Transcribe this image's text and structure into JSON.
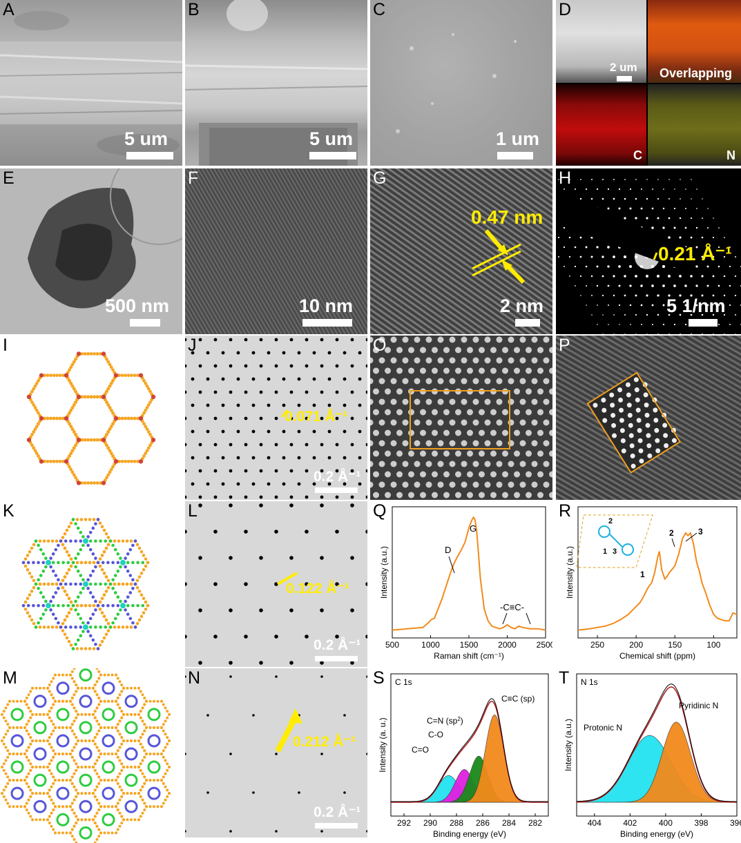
{
  "panel_labels": [
    "A",
    "B",
    "C",
    "D",
    "E",
    "F",
    "G",
    "H",
    "I",
    "J",
    "O",
    "P",
    "K",
    "L",
    "Q",
    "R",
    "M",
    "N",
    "S",
    "T"
  ],
  "scale_bars": {
    "A": "5 um",
    "B": "5 um",
    "C": "1 um",
    "D": "2 um",
    "E": "500 nm",
    "F": "10 nm",
    "G": "2 nm",
    "H": "5 1/nm",
    "J": "0.2 Å⁻¹",
    "L": "0.2 Å⁻¹",
    "N": "0.2 Å⁻¹"
  },
  "D_labels": {
    "overlap": "Overlapping",
    "c": "C",
    "n": "N"
  },
  "annotations": {
    "G": "0.47 nm",
    "H": "0.21 Å⁻¹",
    "J": "0.071 Å⁻¹",
    "L": "0.122 Å⁻¹",
    "N": "0.212 Å⁻¹"
  },
  "colors": {
    "orange_line": "#f28a1c",
    "yellow_label": "#ffec00",
    "node_orange": "#f5a623",
    "node_green": "#2ecc40",
    "node_blue": "#5656d8",
    "node_cyan": "#20d0c0",
    "node_red": "#d0453a",
    "fit_cyan": "#22e3f0",
    "fit_magenta": "#e020e0",
    "fit_green": "#1a8a1a",
    "fit_orange": "#f28a1c",
    "envelope": "#b0181c"
  },
  "chart_data": [
    {
      "panel": "Q",
      "type": "line",
      "xlabel": "Raman shift (cm⁻¹)",
      "ylabel": "Intensity (a.u.)",
      "xlim": [
        500,
        2500
      ],
      "xticks": [
        500,
        1000,
        1500,
        2000,
        2500
      ],
      "annotations": [
        "D",
        "G",
        "-C≡C-"
      ],
      "series": [
        {
          "x": [
            500,
            700,
            900,
            980,
            1010,
            1050,
            1150,
            1250,
            1300,
            1350,
            1400,
            1450,
            1500,
            1540,
            1560,
            1580,
            1600,
            1620,
            1650,
            1700,
            1750,
            1800,
            1900,
            1950,
            2000,
            2050,
            2100,
            2150,
            2200,
            2300,
            2400,
            2500
          ],
          "y": [
            0.06,
            0.07,
            0.08,
            0.12,
            0.14,
            0.15,
            0.3,
            0.48,
            0.56,
            0.62,
            0.67,
            0.73,
            0.84,
            0.9,
            0.92,
            0.9,
            0.82,
            0.68,
            0.45,
            0.22,
            0.13,
            0.09,
            0.07,
            0.08,
            0.1,
            0.08,
            0.07,
            0.09,
            0.08,
            0.07,
            0.07,
            0.06
          ]
        }
      ]
    },
    {
      "panel": "R",
      "type": "line",
      "xlabel": "Chemical shift (ppm)",
      "ylabel": "Intensity (a.u.)",
      "xlim": [
        275,
        70
      ],
      "xticks": [
        250,
        200,
        150,
        100
      ],
      "annotations": [
        "1",
        "2",
        "3",
        "1",
        "2",
        "3"
      ],
      "series": [
        {
          "x": [
            275,
            260,
            250,
            240,
            230,
            220,
            210,
            200,
            195,
            190,
            185,
            180,
            176,
            172,
            170,
            167,
            163,
            160,
            157,
            154,
            150,
            145,
            140,
            136,
            133,
            130,
            126,
            122,
            118,
            115,
            110,
            105,
            100,
            95,
            90,
            85,
            80,
            75,
            70
          ],
          "y": [
            0.06,
            0.07,
            0.08,
            0.09,
            0.11,
            0.14,
            0.18,
            0.24,
            0.27,
            0.32,
            0.38,
            0.42,
            0.5,
            0.62,
            0.66,
            0.52,
            0.45,
            0.47,
            0.5,
            0.52,
            0.55,
            0.64,
            0.76,
            0.8,
            0.78,
            0.8,
            0.72,
            0.58,
            0.5,
            0.42,
            0.34,
            0.25,
            0.18,
            0.15,
            0.14,
            0.13,
            0.13,
            0.19,
            0.18
          ]
        }
      ]
    },
    {
      "panel": "S",
      "type": "area",
      "title": "C 1s",
      "xlabel": "Binding energy (eV)",
      "ylabel": "Intensity (a. u.)",
      "xlim": [
        293,
        281
      ],
      "xticks": [
        292,
        290,
        288,
        286,
        284,
        282
      ],
      "series": [
        {
          "name": "C=O",
          "center": 288.6,
          "height": 0.22,
          "width": 0.8
        },
        {
          "name": "C-O",
          "center": 287.4,
          "height": 0.27,
          "width": 0.7
        },
        {
          "name": "C=N (sp2)",
          "center": 286.3,
          "height": 0.38,
          "width": 0.7
        },
        {
          "name": "C≡C (sp)",
          "center": 285.1,
          "height": 0.72,
          "width": 0.7
        }
      ]
    },
    {
      "panel": "T",
      "type": "area",
      "title": "N 1s",
      "xlabel": "Binding energy (eV)",
      "ylabel": "Intensity (a.u.)",
      "xlim": [
        405,
        396
      ],
      "xticks": [
        404,
        402,
        400,
        398,
        396
      ],
      "series": [
        {
          "name": "Protonic N",
          "center": 400.9,
          "height": 0.55,
          "width": 1.2
        },
        {
          "name": "Pyridinic N",
          "center": 399.4,
          "height": 0.66,
          "width": 0.8
        }
      ]
    }
  ],
  "chart_labels": {
    "Q_D": "D",
    "Q_G": "G",
    "Q_CC": "-C≡C-",
    "R_1": "1",
    "R_2": "2",
    "R_3": "3",
    "S_title": "C 1s",
    "S_CO2": "C=O",
    "S_CO": "C-O",
    "S_CN": "C=N (sp",
    "S_CN_sup": "2",
    "S_CN_end": ")",
    "S_CC": "C≡C (sp)",
    "T_title": "N 1s",
    "T_prot": "Protonic N",
    "T_pyr": "Pyridinic N"
  }
}
